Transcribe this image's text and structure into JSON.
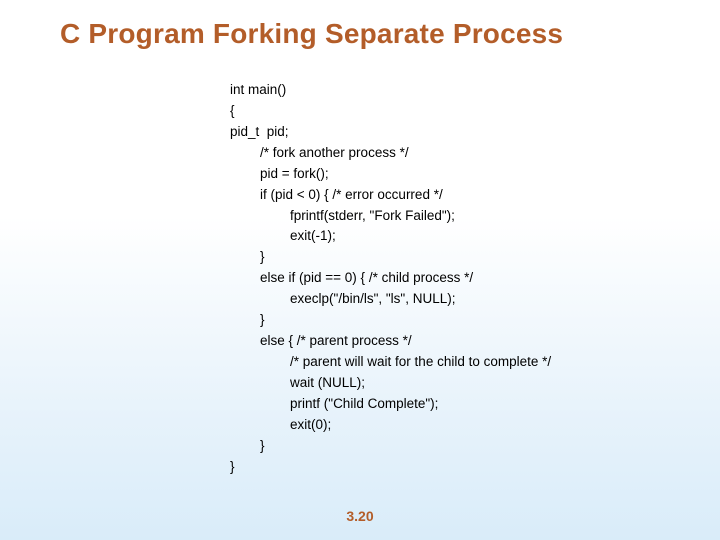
{
  "title": "C Program Forking Separate Process",
  "code": {
    "l0": "int main()",
    "l1": "{",
    "l2": "pid_t  pid;",
    "l3": "        /* fork another process */",
    "l4": "        pid = fork();",
    "l5": "        if (pid < 0) { /* error occurred */",
    "l6": "                fprintf(stderr, \"Fork Failed\");",
    "l7": "                exit(-1);",
    "l8": "        }",
    "l9": "        else if (pid == 0) { /* child process */",
    "l10": "                execlp(\"/bin/ls\", \"ls\", NULL);",
    "l11": "        }",
    "l12": "        else { /* parent process */",
    "l13": "                /* parent will wait for the child to complete */",
    "l14": "                wait (NULL);",
    "l15": "                printf (\"Child Complete\");",
    "l16": "                exit(0);",
    "l17": "        }",
    "l18": "}"
  },
  "page_number": "3.20",
  "colors": {
    "title": "#b35d29",
    "text": "#000000",
    "bg_top": "#ffffff",
    "bg_bottom": "#d9ecf9"
  },
  "fontsize": {
    "title": 28,
    "code": 13.5,
    "page_num": 14
  }
}
